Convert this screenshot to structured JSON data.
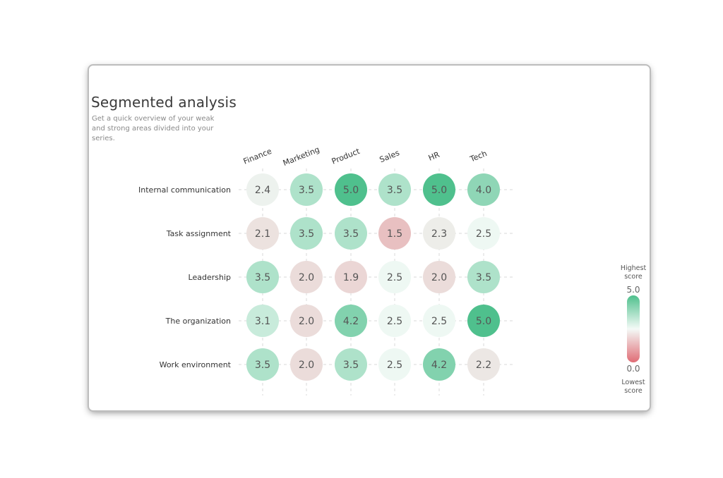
{
  "card": {
    "title": "Segmented analysis",
    "subtitle": "Get a quick overview of your weak and strong areas divided into your series."
  },
  "chart_data": {
    "type": "heatmap",
    "columns": [
      "Finance",
      "Marketing",
      "Product",
      "Sales",
      "HR",
      "Tech"
    ],
    "rows": [
      "Internal communication",
      "Task assignment",
      "Leadership",
      "The organization",
      "Work environment"
    ],
    "values": [
      [
        2.4,
        3.5,
        5.0,
        3.5,
        5.0,
        4.0
      ],
      [
        2.1,
        3.5,
        3.5,
        1.5,
        2.3,
        2.5
      ],
      [
        3.5,
        2.0,
        1.9,
        2.5,
        2.0,
        3.5
      ],
      [
        3.1,
        2.0,
        4.2,
        2.5,
        2.5,
        5.0
      ],
      [
        3.5,
        2.0,
        3.5,
        2.5,
        4.2,
        2.2
      ]
    ],
    "value_range": [
      0.0,
      5.0
    ],
    "legend": {
      "top_label": "Highest score",
      "bottom_label": "Lowest score",
      "top_value": "5.0",
      "bottom_value": "0.0"
    },
    "colors": {
      "high": "#4fc08d",
      "mid": "#eef8f3",
      "low": "#e06c75"
    },
    "grid": true,
    "legend_position": "right"
  }
}
